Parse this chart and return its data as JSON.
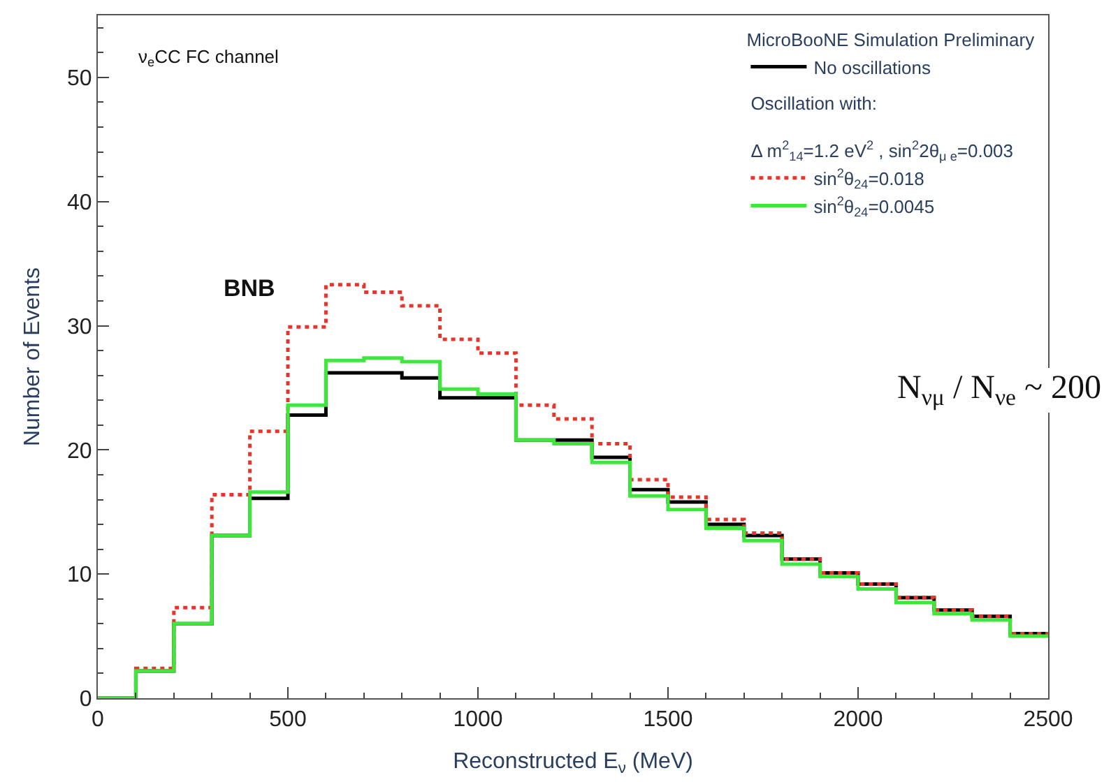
{
  "chart_data": {
    "type": "histogram",
    "xlabel": "Reconstructed E$_{ν}$ (MeV)",
    "ylabel": "Number of Events",
    "legend_title": "MicroBooNE Simulation Preliminary",
    "bins": [
      0,
      100,
      200,
      300,
      400,
      500,
      600,
      700,
      800,
      900,
      1000,
      1100,
      1200,
      1300,
      1400,
      1500,
      1600,
      1700,
      1800,
      1900,
      2000,
      2100,
      2200,
      2300,
      2400,
      2500
    ],
    "series": [
      {
        "name": "No oscillations",
        "color": "#000000",
        "line_style": "solid",
        "values": [
          0,
          2.2,
          6.0,
          13.1,
          16.1,
          22.8,
          26.2,
          26.2,
          25.8,
          24.2,
          24.2,
          20.8,
          20.8,
          19.4,
          16.8,
          15.8,
          14.0,
          13.1,
          11.2,
          10.1,
          9.2,
          8.1,
          7.1,
          6.6,
          5.2
        ]
      },
      {
        "name": "sin$^{2}$θ$_{24}$=0.018",
        "color": "#e8352b",
        "line_style": "dotted",
        "values": [
          0,
          2.4,
          7.3,
          16.4,
          21.5,
          29.9,
          33.3,
          32.7,
          31.6,
          28.9,
          27.8,
          23.6,
          22.5,
          20.5,
          17.6,
          16.2,
          14.4,
          13.3,
          11.2,
          10.1,
          9.2,
          8.1,
          7.1,
          6.6,
          5.2
        ]
      },
      {
        "name": "sin$^{2}$θ$_{24}$=0.0045",
        "color": "#3ee83a",
        "line_style": "solid",
        "values": [
          0,
          2.2,
          6.0,
          13.1,
          16.6,
          23.6,
          27.2,
          27.4,
          27.1,
          24.9,
          24.5,
          20.8,
          20.5,
          19.0,
          16.3,
          15.2,
          13.7,
          12.7,
          10.8,
          9.8,
          8.8,
          7.7,
          6.8,
          6.3,
          5.0
        ]
      }
    ],
    "xlim": [
      0,
      2500
    ],
    "xticks": [
      0,
      500,
      1000,
      1500,
      2000,
      2500
    ],
    "ylim": [
      0,
      55
    ],
    "yticks": [
      0,
      10,
      20,
      30,
      40,
      50
    ],
    "legend": "top right",
    "annotations": [
      {
        "text": "ν$_{e}$CC FC channel"
      },
      {
        "text": "BNB"
      },
      {
        "text": "Oscillation with:"
      },
      {
        "text": "Δ m$^{2}$$_{14}$=1.2 eV$^{2}$ , sin$^{2}$2θ$_{μ e}$=0.003"
      },
      {
        "text": "N$_{νμ}$ / N$_{νe}$ ~ 200"
      }
    ]
  }
}
